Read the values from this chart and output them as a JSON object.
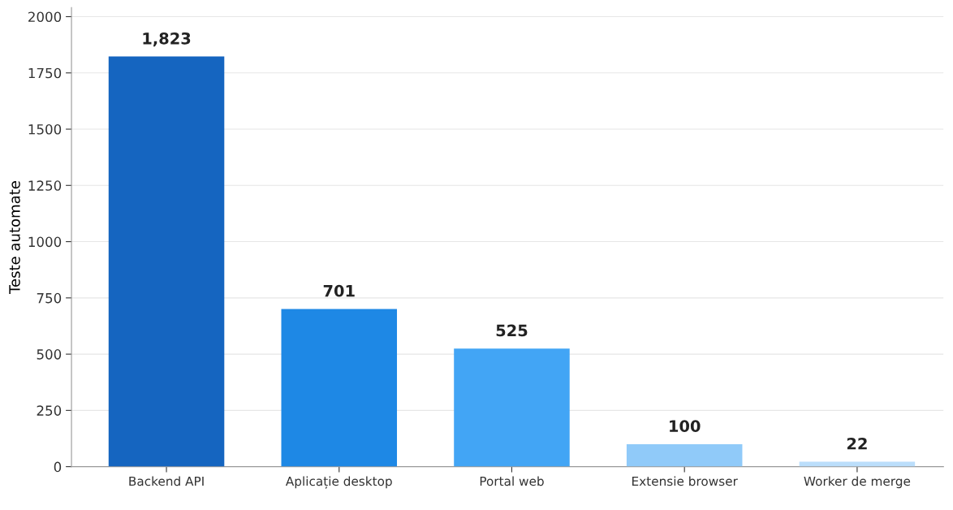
{
  "chart_data": {
    "type": "bar",
    "ylabel": "Teste automate",
    "categories": [
      "Backend API",
      "Aplicație desktop",
      "Portal web",
      "Extensie browser",
      "Worker de merge"
    ],
    "values": [
      1823,
      701,
      525,
      100,
      22
    ],
    "value_labels": [
      "1,823",
      "701",
      "525",
      "100",
      "22"
    ],
    "colors": [
      "#1565c0",
      "#1e88e5",
      "#42a5f5",
      "#90caf9",
      "#bbdefb"
    ],
    "ylim": [
      0,
      2040
    ],
    "yticks": [
      0,
      250,
      500,
      750,
      1000,
      1250,
      1500,
      1750,
      2000
    ],
    "grid": "y"
  }
}
